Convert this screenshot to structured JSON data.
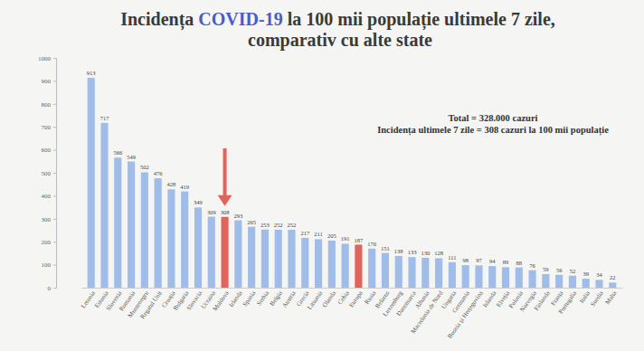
{
  "chart_data": {
    "type": "bar",
    "title": "Incidența COVID-19 la 100 mii populație ultimele 7 zile, comparativ cu alte state",
    "annotations": [
      "Total = 328.000 cazuri",
      "Incidența ultimele 7 zile = 308 cazuri la 100 mii populație"
    ],
    "categories": [
      "Letonia",
      "Estonia",
      "Slovenia",
      "Romania",
      "Muntenegru",
      "Regatul Unit",
      "Croația",
      "Bulgaria",
      "Slovacia",
      "Ucraina",
      "Moldova",
      "Irlanda",
      "Spania",
      "Serbia",
      "Belgia",
      "Austria",
      "Grecia",
      "Lituania",
      "Olanda",
      "Cehia",
      "Europa",
      "Rusia",
      "Belarus",
      "Luxemburg",
      "Danemarca",
      "Albania",
      "Macedonia de Nord",
      "Ungaria",
      "Germania",
      "Bosnia și Herțegovina",
      "Islanda",
      "Elveția",
      "Polonia",
      "Norvegia",
      "Finlanda",
      "Franța",
      "Portugalia",
      "Italia",
      "Suedia",
      "Malta"
    ],
    "values": [
      913,
      717,
      566,
      549,
      502,
      476,
      428,
      419,
      349,
      309,
      308,
      293,
      265,
      253,
      252,
      252,
      217,
      211,
      205,
      191,
      187,
      170,
      151,
      138,
      133,
      130,
      128,
      111,
      98,
      97,
      94,
      89,
      88,
      76,
      59,
      56,
      52,
      39,
      34,
      22
    ],
    "colors": [
      "#9fbde8",
      "#9fbde8",
      "#9fbde8",
      "#9fbde8",
      "#9fbde8",
      "#9fbde8",
      "#9fbde8",
      "#9fbde8",
      "#9fbde8",
      "#9fbde8",
      "#e0645c",
      "#9fbde8",
      "#9fbde8",
      "#9fbde8",
      "#9fbde8",
      "#9fbde8",
      "#9fbde8",
      "#9fbde8",
      "#9fbde8",
      "#9fbde8",
      "#e0645c",
      "#9fbde8",
      "#9fbde8",
      "#9fbde8",
      "#9fbde8",
      "#9fbde8",
      "#9fbde8",
      "#9fbde8",
      "#9fbde8",
      "#9fbde8",
      "#9fbde8",
      "#9fbde8",
      "#9fbde8",
      "#9fbde8",
      "#9fbde8",
      "#9fbde8",
      "#9fbde8",
      "#9fbde8",
      "#9fbde8",
      "#9fbde8"
    ],
    "ylim": [
      0,
      1000
    ],
    "yticks": [
      0,
      100,
      200,
      300,
      400,
      500,
      600,
      700,
      800,
      900,
      1000
    ],
    "grid": false,
    "data_labels": true
  }
}
